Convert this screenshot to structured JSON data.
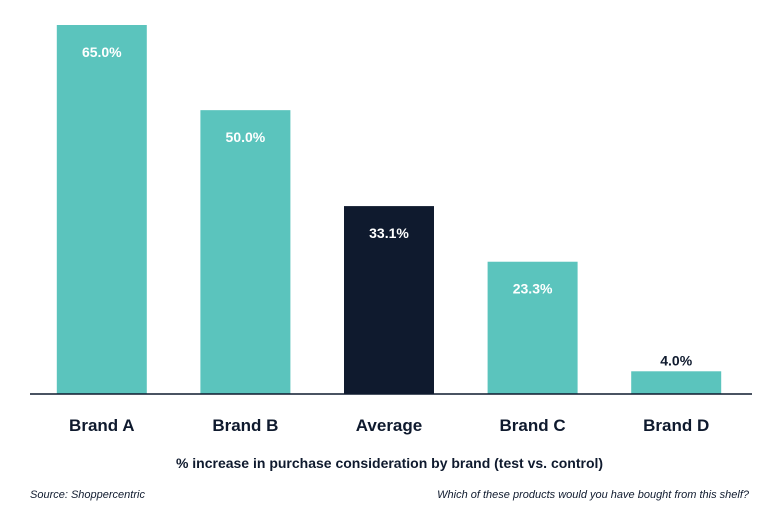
{
  "chart_data": {
    "type": "bar",
    "categories": [
      "Brand A",
      "Brand B",
      "Average",
      "Brand C",
      "Brand D"
    ],
    "values": [
      65.0,
      50.0,
      33.1,
      23.3,
      4.0
    ],
    "value_labels": [
      "65.0%",
      "50.0%",
      "33.1%",
      "23.3%",
      "4.0%"
    ],
    "xlabel": "% increase in purchase consideration by brand (test vs. control)",
    "ylabel": "",
    "ylim": [
      0,
      65
    ],
    "grid": false,
    "colors": {
      "default": "#5bc4bd",
      "highlight": "#0f1a2e",
      "axis": "#0f1a2e",
      "label_on_bar": "#ffffff",
      "label_above_bar": "#0f1a2e"
    },
    "highlight_category": "Average",
    "source": "Source: Shoppercentric",
    "note": "Which of these products would you have bought from this shelf?"
  }
}
